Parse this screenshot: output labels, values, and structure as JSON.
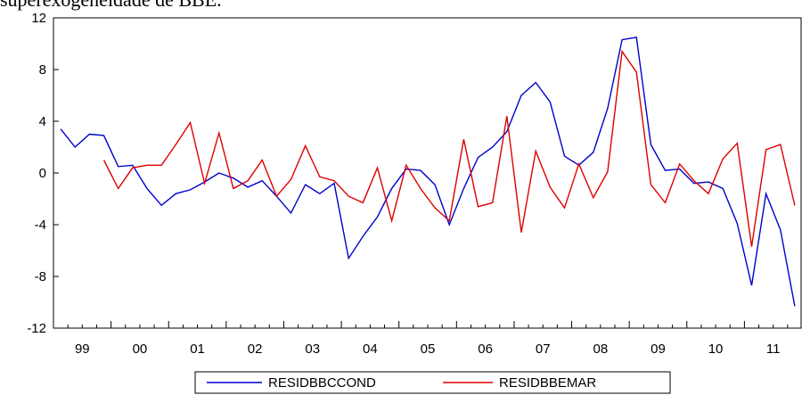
{
  "header_text": "superexogeneidade de BBE.",
  "chart_data": {
    "type": "line",
    "x": [
      "1999Q1",
      "1999Q2",
      "1999Q3",
      "1999Q4",
      "2000Q1",
      "2000Q2",
      "2000Q3",
      "2000Q4",
      "2001Q1",
      "2001Q2",
      "2001Q3",
      "2001Q4",
      "2002Q1",
      "2002Q2",
      "2002Q3",
      "2002Q4",
      "2003Q1",
      "2003Q2",
      "2003Q3",
      "2003Q4",
      "2004Q1",
      "2004Q2",
      "2004Q3",
      "2004Q4",
      "2005Q1",
      "2005Q2",
      "2005Q3",
      "2005Q4",
      "2006Q1",
      "2006Q2",
      "2006Q3",
      "2006Q4",
      "2007Q1",
      "2007Q2",
      "2007Q3",
      "2007Q4",
      "2008Q1",
      "2008Q2",
      "2008Q3",
      "2008Q4",
      "2009Q1",
      "2009Q2",
      "2009Q3",
      "2009Q4",
      "2010Q1",
      "2010Q2",
      "2010Q3",
      "2010Q4",
      "2011Q1",
      "2011Q2",
      "2011Q3",
      "2011Q4"
    ],
    "x_tick_labels": [
      "99",
      "00",
      "01",
      "02",
      "03",
      "04",
      "05",
      "06",
      "07",
      "08",
      "09",
      "10",
      "11"
    ],
    "y_ticks": [
      -12,
      -8,
      -4,
      0,
      4,
      8,
      12
    ],
    "ylim": [
      -12,
      12
    ],
    "grid": false,
    "legend_position": "bottom-center",
    "series": [
      {
        "name": "RESIDBBCCOND",
        "color": "#0000cc",
        "values": [
          3.4,
          2.0,
          3.0,
          2.9,
          0.5,
          0.6,
          -1.2,
          -2.5,
          -1.6,
          -1.3,
          -0.7,
          0.0,
          -0.4,
          -1.1,
          -0.6,
          -1.8,
          -3.1,
          -0.9,
          -1.6,
          -0.8,
          -6.6,
          -4.9,
          -3.4,
          -1.2,
          0.3,
          0.2,
          -0.9,
          -4.0,
          -1.2,
          1.2,
          2.0,
          3.2,
          6.0,
          7.0,
          5.5,
          1.3,
          0.6,
          1.6,
          5.0,
          10.3,
          10.5,
          2.2,
          0.2,
          0.3,
          -0.8,
          -0.7,
          -1.2,
          -3.9,
          -8.7,
          -1.6,
          -4.4,
          -10.3
        ]
      },
      {
        "name": "RESIDBBEMAR",
        "color": "#dd0000",
        "values": [
          null,
          null,
          null,
          1.0,
          -1.2,
          0.4,
          0.6,
          0.6,
          2.2,
          3.9,
          -0.8,
          3.1,
          -1.2,
          -0.6,
          1.0,
          -1.8,
          -0.5,
          2.1,
          -0.3,
          -0.6,
          -1.8,
          -2.3,
          0.4,
          -3.7,
          0.6,
          -1.2,
          -2.7,
          -3.7,
          2.6,
          -2.6,
          -2.3,
          4.4,
          -4.6,
          1.7,
          -1.1,
          -2.7,
          0.7,
          -1.9,
          0.1,
          9.4,
          7.8,
          -0.9,
          -2.3,
          0.7,
          -0.6,
          -1.6,
          1.1,
          2.3,
          -5.7,
          1.8,
          2.2,
          -2.5
        ]
      }
    ]
  }
}
